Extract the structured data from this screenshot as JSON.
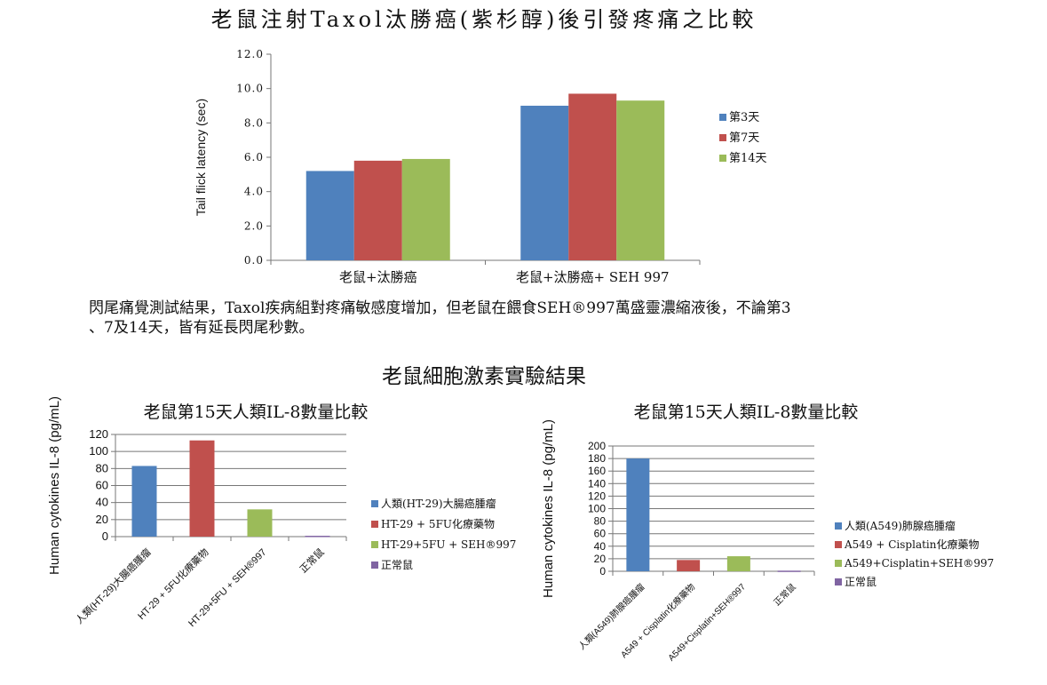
{
  "main_title": "老鼠注射Taxol汰勝癌(紫杉醇)後引發疼痛之比較",
  "caption": {
    "line1": "閃尾痛覺測試結果，Taxol疾病組對疼痛敏感度增加，但老鼠在餵食SEH®997萬盛靈濃縮液後，不論第3",
    "line2": "、7及14天，皆有延長閃尾秒數。"
  },
  "section_title": "老鼠細胞激素實驗結果",
  "chart_data": [
    {
      "type": "bar",
      "title": "",
      "ylabel": "Tail flick latency (sec)",
      "xlabel": "",
      "categories": [
        "老鼠+汰勝癌",
        "老鼠+汰勝癌+ SEH 997"
      ],
      "series": [
        {
          "name": "第3天",
          "values": [
            5.2,
            9.0
          ],
          "color": "#4f81bd"
        },
        {
          "name": "第7天",
          "values": [
            5.8,
            9.7
          ],
          "color": "#c0504d"
        },
        {
          "name": "第14天",
          "values": [
            5.9,
            9.3
          ],
          "color": "#9bbb59"
        }
      ],
      "ylim": [
        0,
        12
      ],
      "yticks": [
        "0.0",
        "2.0",
        "4.0",
        "6.0",
        "8.0",
        "10.0",
        "12.0"
      ],
      "grid": false,
      "legend": "right"
    },
    {
      "type": "bar",
      "title": "老鼠第15天人類IL-8數量比較",
      "ylabel": "Human cytokines IL-8 (pg/mL)",
      "xlabel": "",
      "categories": [
        "人類(HT-29)大腸癌腫瘤",
        "HT-29 + 5FU化療藥物",
        "HT-29+5FU + SEH®997",
        "正常鼠"
      ],
      "series": [
        {
          "name": "人類(HT-29)大腸癌腫瘤",
          "values": [
            83,
            null,
            null,
            null
          ],
          "color": "#4f81bd"
        },
        {
          "name": "HT-29 + 5FU化療藥物",
          "values": [
            null,
            113,
            null,
            null
          ],
          "color": "#c0504d"
        },
        {
          "name": "HT-29+5FU + SEH®997",
          "values": [
            null,
            null,
            32,
            null
          ],
          "color": "#9bbb59"
        },
        {
          "name": "正常鼠",
          "values": [
            null,
            null,
            null,
            1
          ],
          "color": "#8064a2"
        }
      ],
      "ylim": [
        0,
        120
      ],
      "yticks": [
        "0",
        "20",
        "40",
        "60",
        "80",
        "100",
        "120"
      ],
      "grid": true,
      "legend": "right"
    },
    {
      "type": "bar",
      "title": "老鼠第15天人類IL-8數量比較",
      "ylabel": "Human cytokines IL-8 (pg/mL)",
      "xlabel": "",
      "categories": [
        "人類(A549)肺腺癌腫瘤",
        "A549 + Cisplatin化療藥物",
        "A549+Cisplatin+SEH®997",
        "正常鼠"
      ],
      "series": [
        {
          "name": "人類(A549)肺腺癌腫瘤",
          "values": [
            180,
            null,
            null,
            null
          ],
          "color": "#4f81bd"
        },
        {
          "name": "A549 + Cisplatin化療藥物",
          "values": [
            null,
            18,
            null,
            null
          ],
          "color": "#c0504d"
        },
        {
          "name": "A549+Cisplatin+SEH®997",
          "values": [
            null,
            null,
            24,
            null
          ],
          "color": "#9bbb59"
        },
        {
          "name": "正常鼠",
          "values": [
            null,
            null,
            null,
            1
          ],
          "color": "#8064a2"
        }
      ],
      "ylim": [
        0,
        200
      ],
      "yticks": [
        "0",
        "20",
        "40",
        "60",
        "80",
        "100",
        "120",
        "140",
        "160",
        "180",
        "200"
      ],
      "grid": true,
      "legend": "right"
    }
  ]
}
